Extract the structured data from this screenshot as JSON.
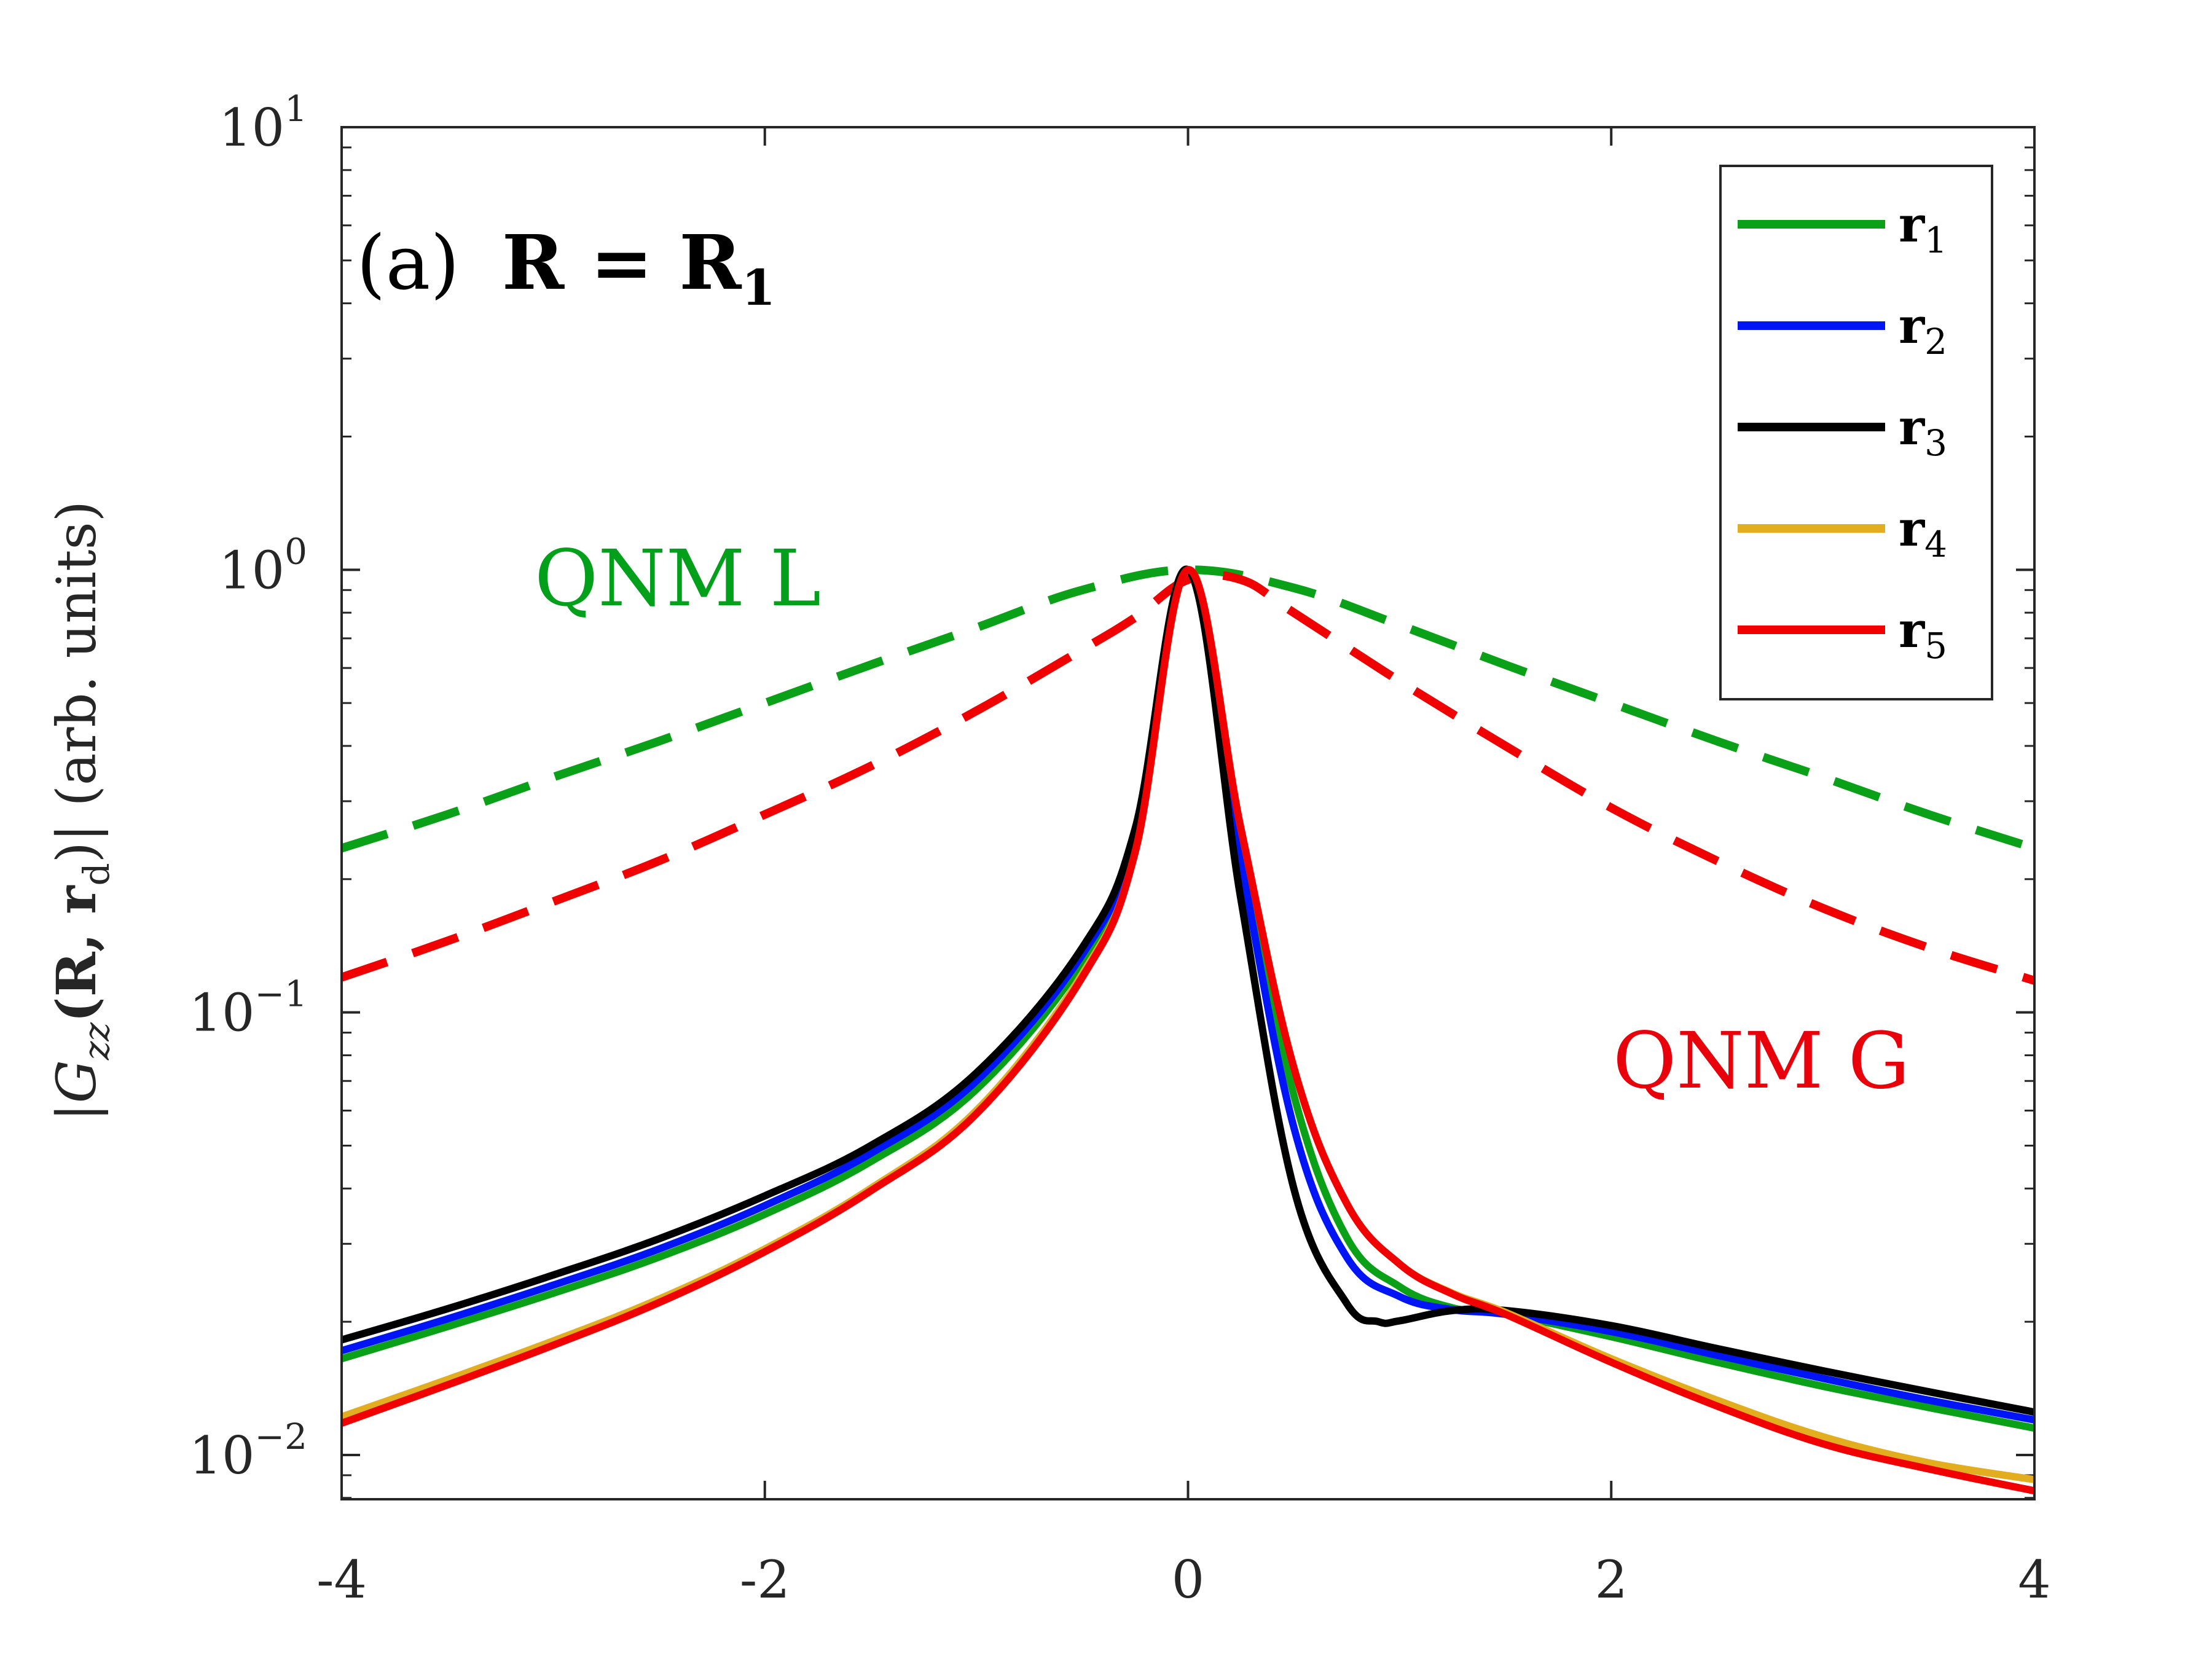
{
  "chart_data": {
    "type": "line",
    "title": "",
    "panel_label": "(a)",
    "panel_equation": "R = R",
    "panel_equation_sub": "1",
    "xlabel": "",
    "ylabel": "|G",
    "ylabel_sub": "zz",
    "ylabel_rest": "(R, r",
    "ylabel_rest_sub": "d",
    "ylabel_tail": ")| (arb. units)",
    "xlim": [
      -4,
      4
    ],
    "ylim_log10": [
      -2.1,
      1
    ],
    "yscale": "log",
    "grid": false,
    "legend_position": "top-right",
    "x_ticks": [
      {
        "value": -4,
        "label": "-4"
      },
      {
        "value": -2,
        "label": "-2"
      },
      {
        "value": 0,
        "label": "0"
      },
      {
        "value": 2,
        "label": "2"
      },
      {
        "value": 4,
        "label": "4"
      }
    ],
    "y_ticks": [
      {
        "exp": -2,
        "base": "10",
        "sup": "−2"
      },
      {
        "exp": -1,
        "base": "10",
        "sup": "−1"
      },
      {
        "exp": 0,
        "base": "10",
        "sup": "0"
      },
      {
        "exp": 1,
        "base": "10",
        "sup": "1"
      }
    ],
    "annotations": [
      {
        "text": "QNM L",
        "color": "#00a01a"
      },
      {
        "text": "QNM G",
        "color": "#e8000b"
      }
    ],
    "series": [
      {
        "name": "r",
        "sub": "1",
        "color": "#0aa018",
        "style": "solid",
        "x": [
          -4,
          -3.5,
          -3,
          -2.5,
          -2,
          -1.5,
          -1,
          -0.5,
          -0.25,
          0,
          0.25,
          0.5,
          0.75,
          1.0,
          1.25,
          1.5,
          2,
          2.5,
          3,
          3.5,
          4
        ],
        "y": [
          0.0165,
          0.0195,
          0.0232,
          0.028,
          0.035,
          0.046,
          0.067,
          0.13,
          0.24,
          1.0,
          0.24,
          0.065,
          0.031,
          0.024,
          0.0215,
          0.0208,
          0.0185,
          0.0162,
          0.0143,
          0.0128,
          0.0115
        ]
      },
      {
        "name": "r",
        "sub": "2",
        "color": "#0015f5",
        "style": "solid",
        "x": [
          -4,
          -3.5,
          -3,
          -2.5,
          -2,
          -1.5,
          -1,
          -0.5,
          -0.25,
          0,
          0.25,
          0.5,
          0.75,
          1.0,
          1.25,
          1.5,
          2,
          2.5,
          3,
          3.5,
          4
        ],
        "y": [
          0.0172,
          0.0203,
          0.0242,
          0.0292,
          0.0366,
          0.048,
          0.07,
          0.135,
          0.25,
          1.0,
          0.22,
          0.055,
          0.028,
          0.0228,
          0.0213,
          0.0208,
          0.019,
          0.0168,
          0.0149,
          0.0133,
          0.012
        ]
      },
      {
        "name": "r",
        "sub": "3",
        "color": "#000000",
        "style": "solid",
        "x": [
          -4,
          -3.5,
          -3,
          -2.5,
          -2,
          -1.5,
          -1,
          -0.5,
          -0.25,
          0,
          0.25,
          0.5,
          0.75,
          0.9,
          1.0,
          1.25,
          1.5,
          2,
          2.5,
          3,
          3.5,
          4
        ],
        "y": [
          0.0182,
          0.0214,
          0.0255,
          0.0308,
          0.0385,
          0.05,
          0.073,
          0.14,
          0.26,
          1.0,
          0.18,
          0.04,
          0.022,
          0.02,
          0.0201,
          0.0212,
          0.0212,
          0.0196,
          0.0174,
          0.0155,
          0.0139,
          0.0125
        ]
      },
      {
        "name": "r",
        "sub": "4",
        "color": "#e2ad1f",
        "style": "solid",
        "x": [
          -4,
          -3.5,
          -3,
          -2.5,
          -2,
          -1.5,
          -1,
          -0.5,
          -0.25,
          0,
          0.25,
          0.5,
          0.75,
          1.0,
          1.25,
          1.5,
          2,
          2.5,
          3,
          3.5,
          4
        ],
        "y": [
          0.0122,
          0.0148,
          0.0181,
          0.0225,
          0.0292,
          0.04,
          0.06,
          0.122,
          0.23,
          1.0,
          0.26,
          0.075,
          0.037,
          0.027,
          0.0232,
          0.021,
          0.0165,
          0.0133,
          0.011,
          0.0096,
          0.0088
        ]
      },
      {
        "name": "r",
        "sub": "5",
        "color": "#f00000",
        "style": "solid",
        "x": [
          -4,
          -3.5,
          -3,
          -2.5,
          -2,
          -1.5,
          -1,
          -0.5,
          -0.25,
          0,
          0.25,
          0.5,
          0.75,
          1.0,
          1.25,
          1.5,
          2,
          2.5,
          3,
          3.5,
          4
        ],
        "y": [
          0.0118,
          0.0144,
          0.0177,
          0.0221,
          0.0288,
          0.0395,
          0.059,
          0.12,
          0.23,
          1.0,
          0.26,
          0.075,
          0.037,
          0.027,
          0.0231,
          0.0208,
          0.0162,
          0.0129,
          0.0106,
          0.0093,
          0.0083
        ]
      },
      {
        "name": "QNM L",
        "color": "#0aa018",
        "style": "dashed",
        "legend": false,
        "x": [
          -4,
          -3.5,
          -3,
          -2.5,
          -2,
          -1.5,
          -1,
          -0.5,
          0,
          0.5,
          1,
          1.5,
          2,
          2.5,
          3,
          3.5,
          4
        ],
        "y": [
          0.235,
          0.28,
          0.34,
          0.41,
          0.5,
          0.61,
          0.74,
          0.9,
          1.0,
          0.91,
          0.75,
          0.61,
          0.5,
          0.41,
          0.34,
          0.28,
          0.235
        ]
      },
      {
        "name": "QNM G",
        "color": "#f00000",
        "style": "dashed",
        "legend": false,
        "x": [
          -4,
          -3.5,
          -3,
          -2.5,
          -2,
          -1.5,
          -1,
          -0.5,
          -0.25,
          0,
          0.25,
          0.5,
          1,
          1.5,
          2,
          2.5,
          3,
          3.5,
          4
        ],
        "y": [
          0.12,
          0.145,
          0.178,
          0.22,
          0.28,
          0.36,
          0.48,
          0.66,
          0.78,
          0.95,
          0.95,
          0.8,
          0.56,
          0.4,
          0.29,
          0.22,
          0.172,
          0.14,
          0.118
        ]
      }
    ]
  }
}
